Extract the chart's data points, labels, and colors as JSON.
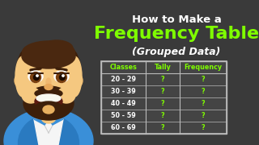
{
  "background_color": "#3a3a3a",
  "title_line1": "How to Make a",
  "title_line2": "Frequency Table",
  "title_line3": "(Grouped Data)",
  "title_line1_color": "#ffffff",
  "title_line2_color": "#7fff00",
  "title_line3_color": "#ffffff",
  "title_line1_fontsize": 9.5,
  "title_line2_fontsize": 16,
  "title_line3_fontsize": 9,
  "table_headers": [
    "Classes",
    "Tally",
    "Frequency"
  ],
  "table_rows": [
    [
      "20 - 29",
      "?",
      "?"
    ],
    [
      "30 - 39",
      "?",
      "?"
    ],
    [
      "40 - 49",
      "?",
      "?"
    ],
    [
      "50 - 59",
      "?",
      "?"
    ],
    [
      "60 - 69",
      "?",
      "?"
    ]
  ],
  "table_header_color": "#7fff00",
  "table_text_color": "#ffffff",
  "table_border_color": "#bbbbbb",
  "table_bg_color": "#444444",
  "figsize": [
    3.2,
    1.8
  ],
  "dpi": 100
}
